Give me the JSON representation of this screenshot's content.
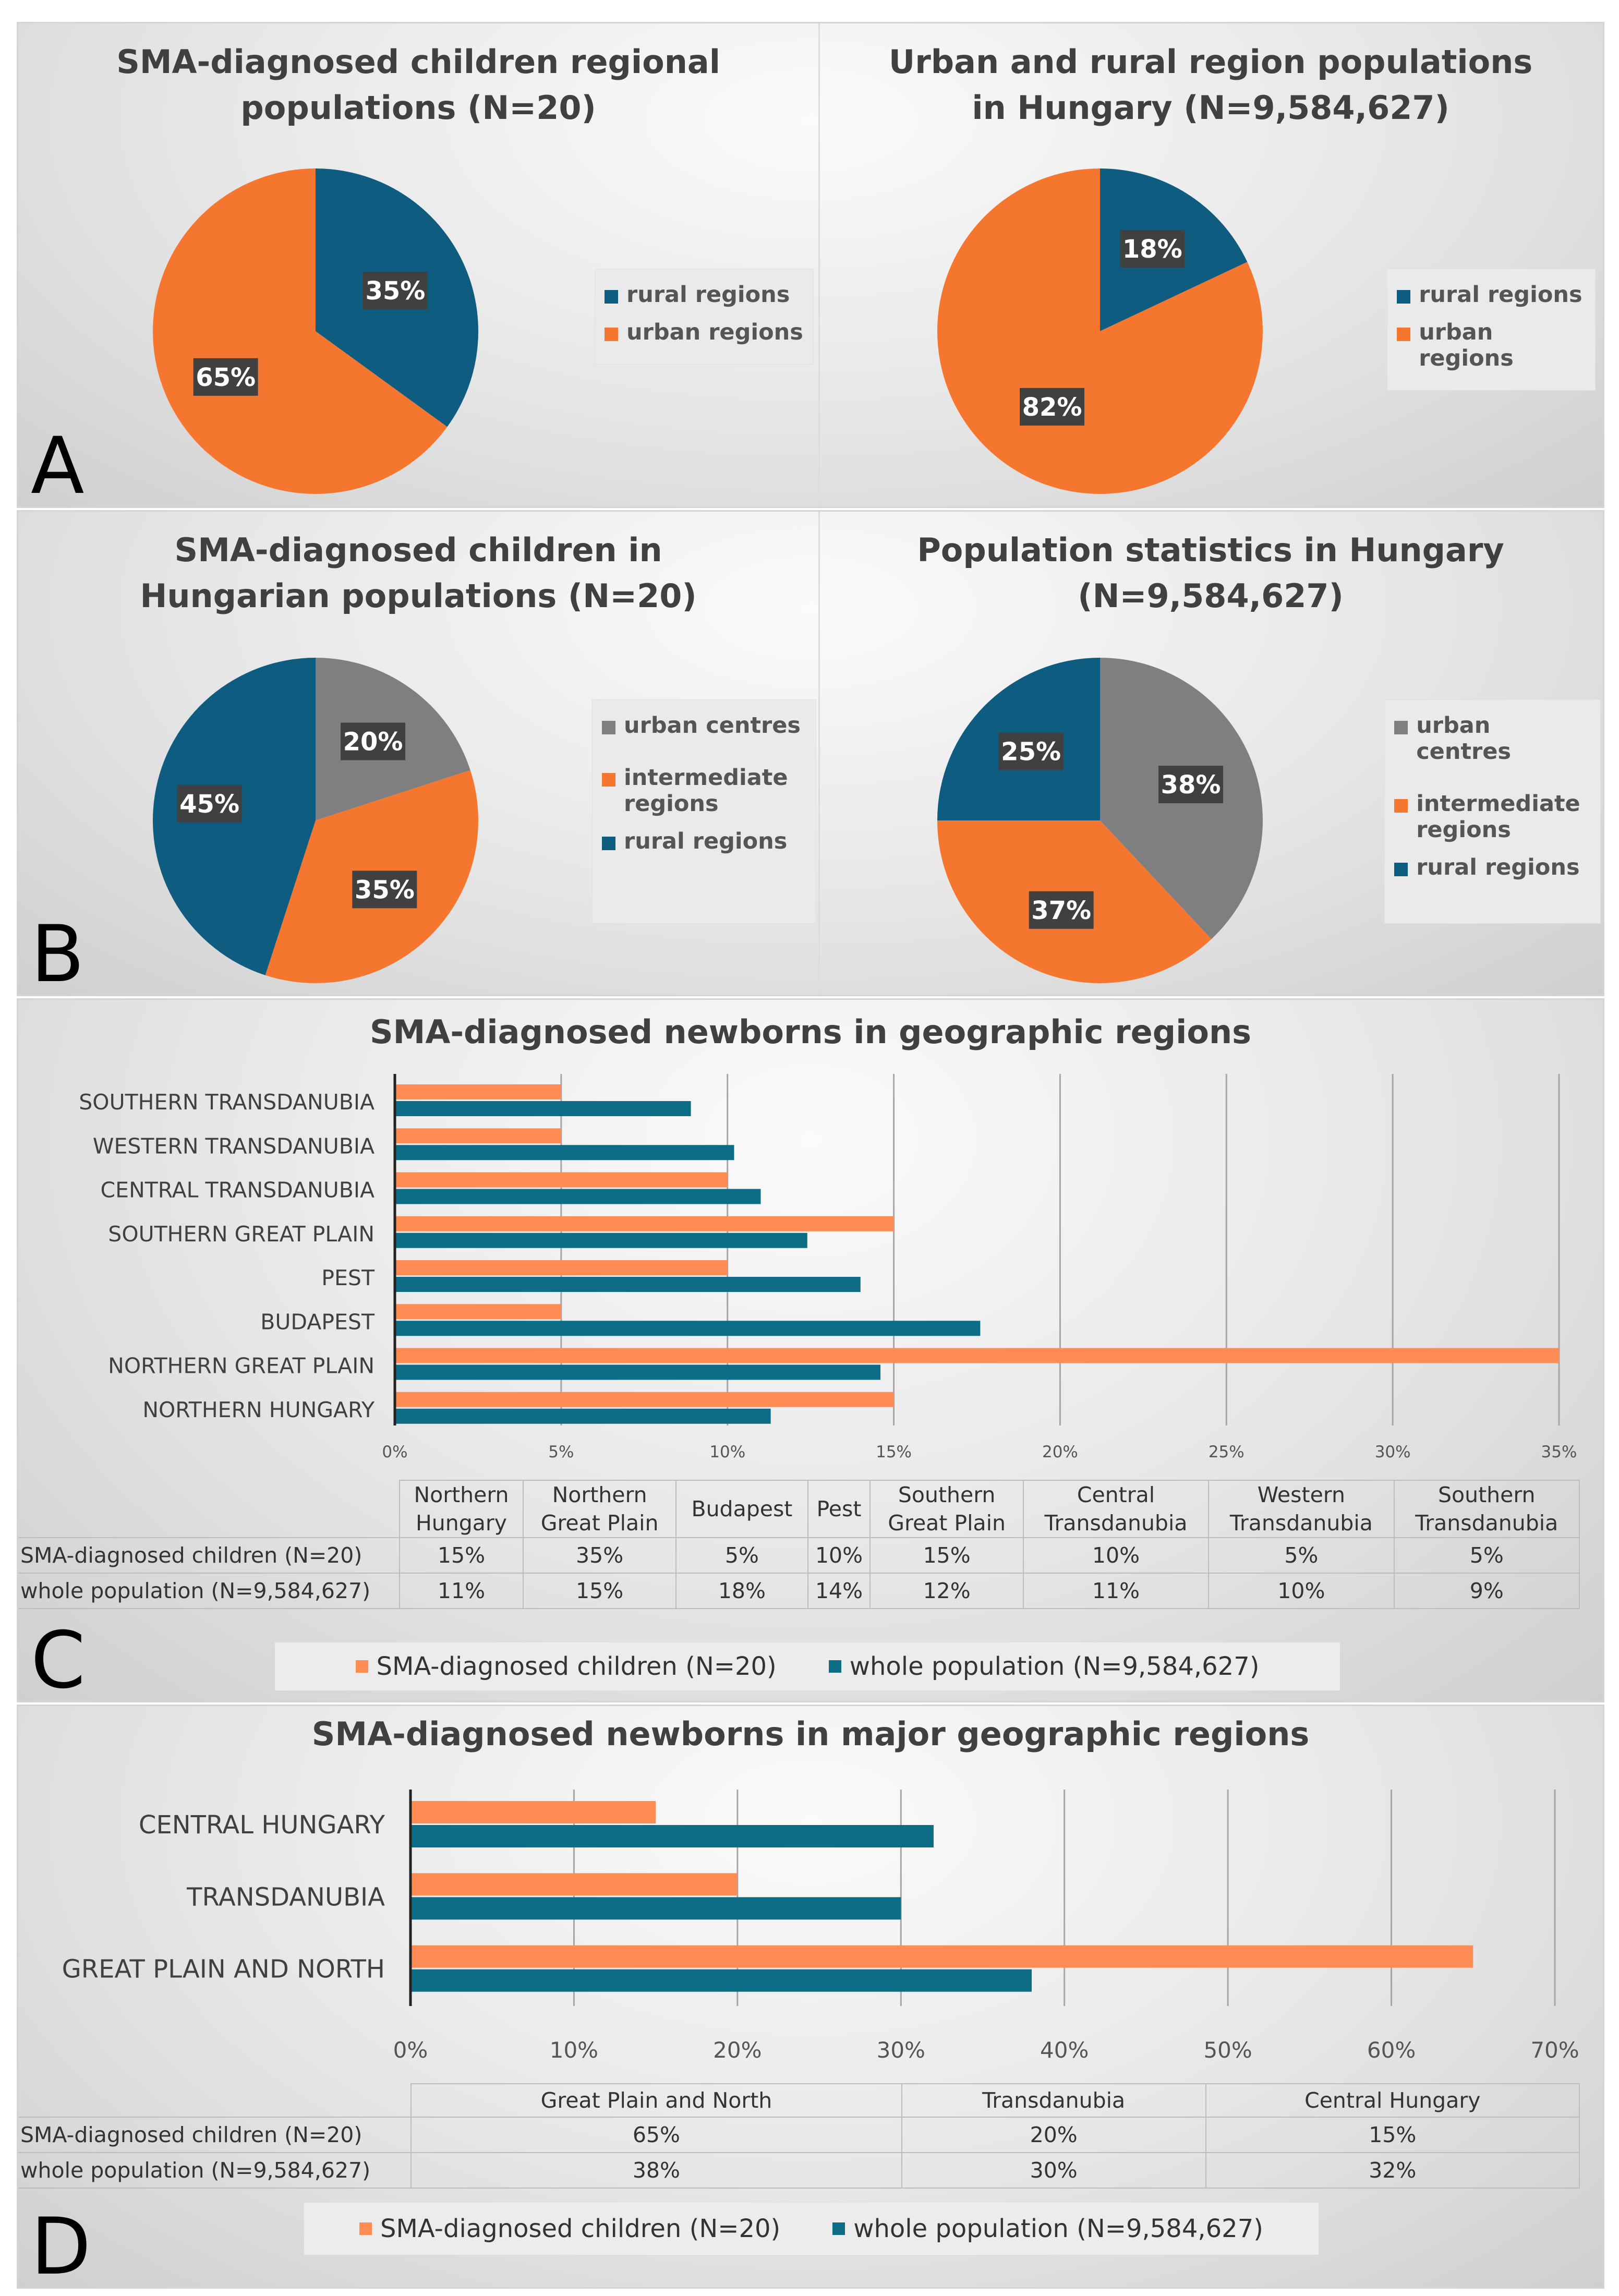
{
  "colors": {
    "orange": "#f5772f",
    "blue": "#0e5c80",
    "gray": "#7f7f7f",
    "bar_orange": "#ff8c55",
    "bar_blue": "#0e6d86"
  },
  "panels": {
    "A": {
      "letter": "A",
      "left_title": [
        "SMA-diagnosed children regional",
        "populations (N=20)"
      ],
      "right_title": [
        "Urban and rural region populations",
        "in Hungary (N=9,584,627)"
      ],
      "legend": [
        "rural regions",
        "urban regions"
      ]
    },
    "B": {
      "letter": "B",
      "left_title": [
        "SMA-diagnosed children in",
        "Hungarian populations (N=20)"
      ],
      "right_title": [
        "Population statistics in Hungary",
        "(N=9,584,627)"
      ],
      "legend": [
        "urban centres",
        "intermediate regions",
        "rural regions"
      ]
    },
    "C": {
      "letter": "C"
    },
    "D": {
      "letter": "D"
    }
  },
  "chart_data": [
    {
      "type": "pie",
      "title": "SMA-diagnosed children regional populations (N=20)",
      "slices": [
        {
          "label": "rural regions",
          "value": 35,
          "text": "35%"
        },
        {
          "label": "urban regions",
          "value": 65,
          "text": "65%"
        }
      ]
    },
    {
      "type": "pie",
      "title": "Urban and rural region populations in Hungary (N=9,584,627)",
      "slices": [
        {
          "label": "rural regions",
          "value": 18,
          "text": "18%"
        },
        {
          "label": "urban regions",
          "value": 82,
          "text": "82%"
        }
      ]
    },
    {
      "type": "pie",
      "title": "SMA-diagnosed children in Hungarian populations (N=20)",
      "slices": [
        {
          "label": "urban centres",
          "value": 20,
          "text": "20%"
        },
        {
          "label": "intermediate regions",
          "value": 35,
          "text": "35%"
        },
        {
          "label": "rural regions",
          "value": 45,
          "text": "45%"
        }
      ]
    },
    {
      "type": "pie",
      "title": "Population statistics in Hungary (N=9,584,627)",
      "slices": [
        {
          "label": "urban centres",
          "value": 38,
          "text": "38%"
        },
        {
          "label": "intermediate regions",
          "value": 37,
          "text": "37%"
        },
        {
          "label": "rural regions",
          "value": 25,
          "text": "25%"
        }
      ]
    },
    {
      "type": "bar",
      "orientation": "horizontal",
      "title": "SMA-diagnosed newborns in geographic regions",
      "categories": [
        "SOUTHERN TRANSDANUBIA",
        "WESTERN TRANSDANUBIA",
        "CENTRAL TRANSDANUBIA",
        "SOUTHERN GREAT PLAIN",
        "PEST",
        "BUDAPEST",
        "NORTHERN GREAT PLAIN",
        "NORTHERN HUNGARY"
      ],
      "series": [
        {
          "name": "SMA-diagnosed children (N=20)",
          "values": [
            5,
            5,
            10,
            15,
            10,
            5,
            35,
            15
          ]
        },
        {
          "name": "whole population (N=9,584,627)",
          "values": [
            8.9,
            10.2,
            11,
            12.4,
            14,
            17.6,
            14.6,
            11.3
          ]
        }
      ],
      "xlim": [
        0,
        35
      ],
      "ticks": [
        "0%",
        "5%",
        "10%",
        "15%",
        "20%",
        "25%",
        "30%",
        "35%"
      ],
      "table": {
        "headers": [
          [
            "Northern",
            "Hungary"
          ],
          [
            "Northern",
            "Great Plain"
          ],
          [
            "Budapest"
          ],
          [
            "Pest"
          ],
          [
            "Southern",
            "Great Plain"
          ],
          [
            "Central",
            "Transdanubia"
          ],
          [
            "Western",
            "Transdanubia"
          ],
          [
            "Southern",
            "Transdanubia"
          ]
        ],
        "rows": [
          {
            "label": "SMA-diagnosed children (N=20)",
            "values": [
              "15%",
              "35%",
              "5%",
              "10%",
              "15%",
              "10%",
              "5%",
              "5%"
            ]
          },
          {
            "label": "whole population (N=9,584,627)",
            "values": [
              "11%",
              "15%",
              "18%",
              "14%",
              "12%",
              "11%",
              "10%",
              "9%"
            ]
          }
        ]
      },
      "legend": [
        "SMA-diagnosed children (N=20)",
        "whole population (N=9,584,627)"
      ]
    },
    {
      "type": "bar",
      "orientation": "horizontal",
      "title": "SMA-diagnosed newborns in major geographic regions",
      "categories": [
        "CENTRAL HUNGARY",
        "TRANSDANUBIA",
        "GREAT PLAIN AND NORTH"
      ],
      "series": [
        {
          "name": "SMA-diagnosed children (N=20)",
          "values": [
            15,
            20,
            65
          ]
        },
        {
          "name": "whole population (N=9,584,627)",
          "values": [
            32,
            30,
            38
          ]
        }
      ],
      "xlim": [
        0,
        70
      ],
      "ticks": [
        "0%",
        "10%",
        "20%",
        "30%",
        "40%",
        "50%",
        "60%",
        "70%"
      ],
      "table": {
        "headers": [
          [
            "Great Plain and North"
          ],
          [
            "Transdanubia"
          ],
          [
            "Central Hungary"
          ]
        ],
        "rows": [
          {
            "label": "SMA-diagnosed children (N=20)",
            "values": [
              "65%",
              "20%",
              "15%"
            ]
          },
          {
            "label": "whole population (N=9,584,627)",
            "values": [
              "38%",
              "30%",
              "32%"
            ]
          }
        ]
      },
      "legend": [
        "SMA-diagnosed children (N=20)",
        "whole population (N=9,584,627)"
      ]
    }
  ]
}
